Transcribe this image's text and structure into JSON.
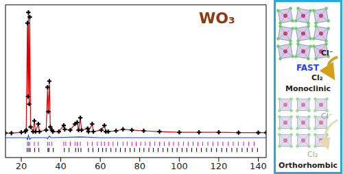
{
  "chart_data": {
    "type": "line",
    "title": "WO₃",
    "xlim": [
      12,
      144
    ],
    "xticks": [
      20,
      40,
      60,
      80,
      100,
      120,
      140
    ],
    "ylim": [
      0,
      100
    ],
    "tick_labels": "x",
    "grid": false,
    "series": [
      {
        "type": "scatter",
        "marker": "+",
        "color": "#000000",
        "x": [
          12,
          15,
          20,
          22,
          22.5,
          23.1,
          23.4,
          23.6,
          24.0,
          24.3,
          24.7,
          26.0,
          26.6,
          27.2,
          28.6,
          29.2,
          32.6,
          33.3,
          33.7,
          34.2,
          34.7,
          35.5,
          36.0,
          39,
          41.5,
          42,
          44.8,
          47.2,
          48.3,
          49.0,
          49.9,
          50.5,
          53.6,
          54,
          55.9,
          56.5,
          60.5,
          62.1,
          62.8,
          64,
          68,
          71.5,
          76,
          82,
          90,
          100,
          110,
          120,
          130,
          140,
          144
        ],
        "values": [
          16,
          16,
          16.5,
          17,
          18,
          88,
          40,
          95,
          35,
          92,
          20,
          17,
          24,
          17,
          22,
          17,
          18,
          46,
          30,
          50,
          20,
          18,
          17,
          17,
          21,
          18.5,
          18,
          22,
          23,
          18,
          26,
          18,
          19,
          17,
          22,
          17,
          18,
          21,
          17,
          17,
          17.5,
          18.5,
          18,
          17.5,
          17,
          16.5,
          16.5,
          16.5,
          16.3,
          16.3,
          16.3
        ]
      },
      {
        "type": "line",
        "color": "#e00000",
        "x": [
          12,
          15,
          20,
          22,
          22.5,
          23.1,
          23.4,
          23.6,
          24.0,
          24.3,
          24.7,
          26.0,
          26.6,
          27.2,
          28.6,
          29.2,
          32.6,
          33.3,
          33.7,
          34.2,
          34.7,
          35.5,
          36.0,
          39,
          41.5,
          42,
          44.8,
          47.2,
          48.3,
          49.0,
          49.9,
          50.5,
          53.6,
          54,
          55.9,
          56.5,
          60.5,
          62.1,
          62.8,
          64,
          68,
          71.5,
          76,
          82,
          90,
          100,
          110,
          120,
          130,
          140,
          144
        ],
        "values": [
          16,
          16,
          16.5,
          17,
          18,
          87,
          41,
          94,
          36,
          91,
          20,
          17,
          24,
          17,
          22,
          17,
          18,
          45,
          30,
          49,
          20,
          18,
          17,
          17,
          21,
          18.5,
          18,
          22,
          23,
          18,
          26,
          18,
          19,
          17,
          22,
          17,
          18,
          21,
          17,
          17,
          17.5,
          18.5,
          18,
          17.5,
          17,
          16.5,
          16.5,
          16.5,
          16.3,
          16.3,
          16.3
        ]
      },
      {
        "type": "line",
        "color": "#1f3fff",
        "x": [
          12,
          20,
          22.8,
          23.1,
          23.6,
          24.3,
          25,
          33,
          33.3,
          34.2,
          35,
          50,
          60,
          80,
          100,
          120,
          144
        ],
        "values": [
          13,
          13,
          13,
          11.5,
          14.5,
          12,
          13,
          13,
          12.3,
          14,
          13,
          13.5,
          13,
          13,
          13,
          13,
          13
        ]
      },
      {
        "type": "scatter",
        "marker": "|",
        "color": "#e000e0",
        "y": 9,
        "x": [
          23.1,
          23.6,
          24.3,
          26.6,
          28.6,
          33.3,
          34.2,
          35.5,
          41.5,
          42.5,
          44.8,
          47.2,
          48.3,
          49.9,
          53.6,
          55.9,
          58.5,
          60.5,
          62.1,
          64.2,
          66.5,
          68.8,
          71.5,
          73.6,
          76.0,
          78.2,
          80.5,
          82.8,
          85.1,
          87.6,
          90.0,
          92.4,
          94.8,
          97.1,
          99.6,
          102.1,
          104.5,
          107.0,
          109.4,
          111.9,
          114.5,
          117.0,
          119.6,
          122.1,
          124.8,
          127.3,
          129.9,
          132.6,
          135.2,
          137.9
        ]
      },
      {
        "type": "scatter",
        "marker": "|",
        "color": "#000000",
        "y": 5,
        "x": [
          23.0,
          23.8,
          24.5,
          26.8,
          28.9,
          33.5,
          34.0,
          36.2,
          41.8,
          44.2,
          47.5,
          48.9,
          50.2,
          54.0,
          56.3,
          59.1,
          61.2,
          63.0,
          65.4,
          67.9,
          70.2,
          72.6,
          75.1,
          77.3,
          79.9,
          82.1,
          84.6,
          86.9,
          89.3,
          91.8,
          94.1,
          96.5,
          98.9,
          101.4,
          103.8,
          106.3,
          108.8,
          111.2,
          113.8,
          116.3,
          118.9,
          121.5,
          124.0,
          126.6,
          129.2,
          131.8,
          134.4,
          137.0,
          139.6
        ]
      }
    ]
  },
  "diagram": {
    "panels": [
      {
        "label": "Monoclinic",
        "reactant": "Cl⁻",
        "rate": "FAST",
        "product": "Cl₂"
      },
      {
        "label": "Orthorhombic",
        "reactant": "Cl⁻",
        "product": "Cl₂"
      }
    ]
  }
}
